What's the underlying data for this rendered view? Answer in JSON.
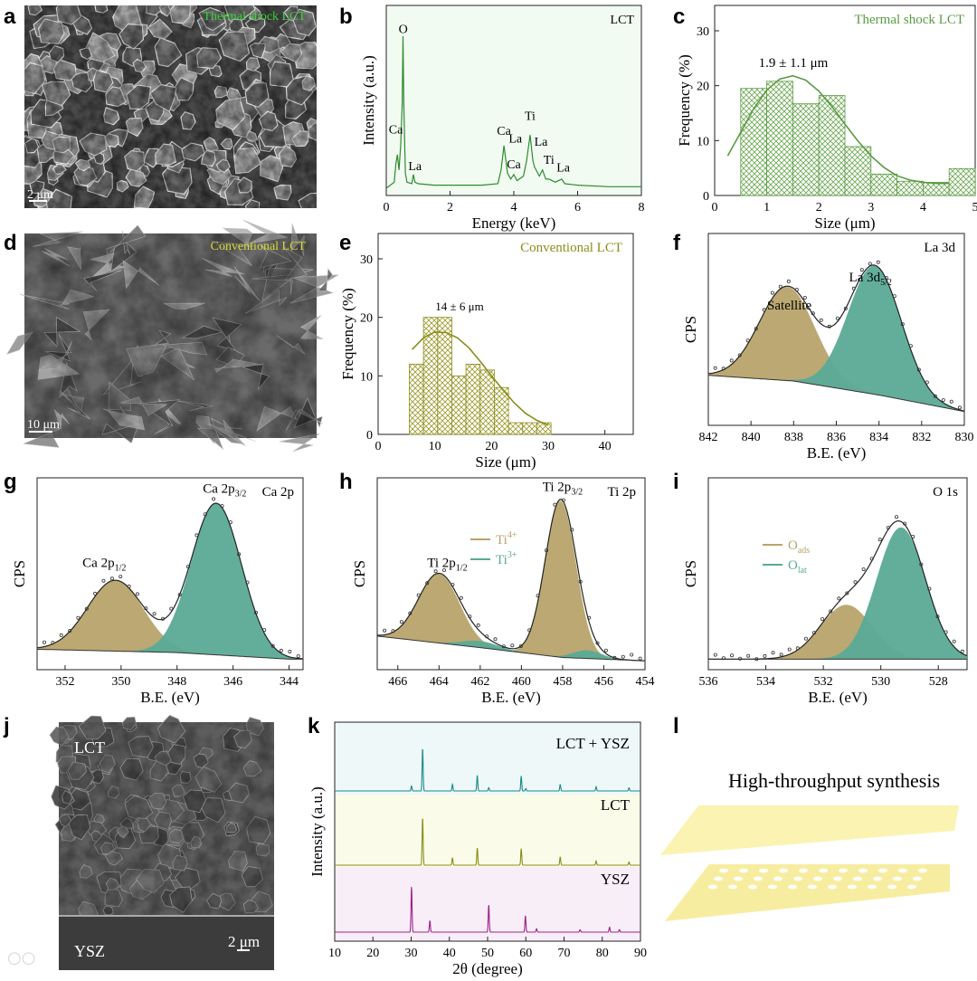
{
  "panels": {
    "a": {
      "letter": "a",
      "caption": "Thermal shock LCT",
      "scalebar": "2 μm"
    },
    "d": {
      "letter": "d",
      "caption": "Conventional LCT",
      "scalebar": "10 μm"
    },
    "j": {
      "letter": "j",
      "top_label": "LCT",
      "bottom_label": "YSZ",
      "scalebar": "2 μm"
    },
    "l": {
      "letter": "l",
      "title": "High-throughput synthesis"
    }
  },
  "colors": {
    "green": "#2e8b2e",
    "olive": "#8c8c1a",
    "tan": "#b8a36a",
    "teal": "#5aaa96",
    "purple": "#a0208a",
    "cyan": "#1a8a8a",
    "plate": "#fbf3b2"
  },
  "chart_data": [
    {
      "id": "b",
      "letter": "b",
      "type": "line",
      "title": "",
      "legend": "LCT",
      "xlabel": "Energy (keV)",
      "ylabel": "Intensity (a.u.)",
      "xlim": [
        0,
        8
      ],
      "ylim": [
        0,
        100
      ],
      "xticks": [
        0,
        2,
        4,
        6,
        8
      ],
      "x": [
        0,
        0.25,
        0.3,
        0.35,
        0.4,
        0.45,
        0.5,
        0.525,
        0.55,
        0.6,
        0.65,
        0.8,
        0.85,
        0.9,
        1,
        1.5,
        2,
        2.5,
        3,
        3.5,
        3.6,
        3.69,
        3.8,
        3.9,
        4.0,
        4.1,
        4.3,
        4.4,
        4.51,
        4.6,
        4.65,
        4.8,
        4.9,
        5.0,
        5.1,
        5.3,
        5.5,
        5.6,
        6,
        7,
        8
      ],
      "y": [
        0,
        4,
        16,
        22,
        12,
        28,
        55,
        100,
        55,
        10,
        4,
        3,
        9,
        4,
        3,
        2,
        2,
        2,
        2,
        3,
        12,
        28,
        10,
        6,
        9,
        5,
        8,
        18,
        35,
        18,
        14,
        8,
        12,
        6,
        6,
        4,
        6,
        3,
        2,
        1,
        1
      ],
      "annotations": [
        {
          "text": "O",
          "x": 0.53,
          "y": 102
        },
        {
          "text": "Ca",
          "x": 0.3,
          "y": 36
        },
        {
          "text": "La",
          "x": 0.9,
          "y": 12
        },
        {
          "text": "Ca",
          "x": 3.69,
          "y": 35
        },
        {
          "text": "La",
          "x": 4.05,
          "y": 30
        },
        {
          "text": "Ca",
          "x": 4.0,
          "y": 13
        },
        {
          "text": "Ti",
          "x": 4.51,
          "y": 45
        },
        {
          "text": "La",
          "x": 4.85,
          "y": 28
        },
        {
          "text": "Ti",
          "x": 5.1,
          "y": 16
        },
        {
          "text": "La",
          "x": 5.55,
          "y": 11
        }
      ]
    },
    {
      "id": "c",
      "letter": "c",
      "type": "bar",
      "legend": "Thermal shock  LCT",
      "xlabel": "Size (μm)",
      "ylabel": "Frequency (%)",
      "xlim": [
        0,
        5
      ],
      "ylim": [
        0,
        30
      ],
      "xticks": [
        0,
        1,
        2,
        3,
        4,
        5
      ],
      "yticks": [
        0,
        10,
        20,
        30
      ],
      "bin_edges": [
        0.5,
        1.0,
        1.5,
        2.0,
        2.5,
        3.0,
        3.5,
        4.0,
        4.5,
        5.0
      ],
      "values": [
        19.5,
        20.8,
        16.7,
        18.2,
        8.9,
        3.9,
        2.6,
        2.4,
        4.9
      ],
      "fit_x": [
        0.25,
        0.5,
        0.75,
        1.0,
        1.25,
        1.5,
        1.75,
        2.0,
        2.25,
        2.5,
        2.75,
        3.0,
        3.25,
        3.5,
        3.75,
        4.0,
        4.25,
        4.5
      ],
      "fit_y": [
        7.2,
        11.5,
        15.8,
        19.2,
        21.2,
        21.8,
        21.0,
        19.0,
        16.2,
        13.0,
        9.9,
        7.2,
        5.1,
        3.6,
        2.8,
        2.4,
        2.2,
        2.2
      ],
      "annotation": "1.9 ± 1.1 μm"
    },
    {
      "id": "e",
      "letter": "e",
      "type": "bar",
      "legend": "Conventional  LCT",
      "xlabel": "Size (μm)",
      "ylabel": "Frequency (%)",
      "xlim": [
        0,
        45
      ],
      "ylim": [
        0,
        30
      ],
      "xticks": [
        0,
        10,
        20,
        30,
        40
      ],
      "yticks": [
        0,
        10,
        20,
        30
      ],
      "bin_edges": [
        5.5,
        8.0,
        10.5,
        13.0,
        15.5,
        18.0,
        20.5,
        23.0,
        25.5,
        28.0,
        30.5
      ],
      "values": [
        12,
        20,
        20,
        10,
        12,
        11,
        8,
        2,
        2,
        2
      ],
      "fit_x": [
        6,
        8,
        10,
        12,
        14,
        16,
        18,
        20,
        22,
        24,
        26,
        28,
        30
      ],
      "fit_y": [
        14.5,
        16.5,
        17.5,
        17.4,
        16.5,
        14.8,
        12.5,
        10.0,
        7.6,
        5.4,
        3.6,
        2.4,
        1.6
      ],
      "annotation": "14 ± 6 μm"
    },
    {
      "id": "f",
      "letter": "f",
      "type": "line",
      "title": "La 3d",
      "xlabel": "B.E. (eV)",
      "ylabel": "CPS",
      "xlim": [
        842,
        830
      ],
      "ylim": [
        0,
        100
      ],
      "xticks": [
        842,
        840,
        838,
        836,
        834,
        832,
        830
      ],
      "background": [
        [
          842,
          26
        ],
        [
          838,
          22.5
        ],
        [
          834,
          14
        ],
        [
          830,
          4
        ]
      ],
      "components": [
        {
          "name": "Satellite",
          "center": 838.3,
          "sigma": 1.3,
          "amp": 57
        },
        {
          "name": "La 3d5/2",
          "center": 834.2,
          "sigma": 1.25,
          "amp": 78
        }
      ],
      "labels": [
        "Satellite",
        "La 3d",
        "5/2"
      ]
    },
    {
      "id": "g",
      "letter": "g",
      "type": "line",
      "title": "Ca 2p",
      "xlabel": "B.E. (eV)",
      "ylabel": "CPS",
      "xlim": [
        353,
        343.5
      ],
      "ylim": [
        0,
        100
      ],
      "xticks": [
        352,
        350,
        348,
        346,
        344
      ],
      "background": [
        [
          353,
          8
        ],
        [
          348,
          6
        ],
        [
          344,
          2
        ]
      ],
      "components": [
        {
          "name": "Ca 2p1/2",
          "center": 350.2,
          "sigma": 1.0,
          "amp": 43
        },
        {
          "name": "Ca 2p3/2",
          "center": 346.6,
          "sigma": 0.9,
          "amp": 92
        }
      ],
      "labels": [
        "Ca 2p",
        "1/2",
        "Ca 2p",
        "3/2"
      ]
    },
    {
      "id": "h",
      "letter": "h",
      "type": "line",
      "title": "Ti 2p",
      "xlabel": "B.E. (eV)",
      "ylabel": "CPS",
      "xlim": [
        467,
        454
      ],
      "ylim": [
        0,
        100
      ],
      "xticks": [
        466,
        464,
        462,
        460,
        458,
        456,
        454
      ],
      "background": [
        [
          467,
          16
        ],
        [
          462,
          9
        ],
        [
          458,
          3
        ],
        [
          454,
          1
        ]
      ],
      "components": [
        {
          "name": "Ti4+",
          "center": 464.0,
          "sigma": 1.0,
          "amp": 42
        },
        {
          "name": "Ti4+",
          "center": 458.1,
          "sigma": 0.75,
          "amp": 95
        },
        {
          "name": "Ti3+",
          "center": 462.0,
          "sigma": 0.9,
          "amp": 4
        },
        {
          "name": "Ti3+",
          "center": 456.8,
          "sigma": 0.7,
          "amp": 5
        }
      ],
      "legend": [
        {
          "label": "Ti",
          "sup": "4+",
          "color": "#b8a36a"
        },
        {
          "label": "Ti",
          "sup": "3+",
          "color": "#5aaa96"
        }
      ],
      "labels": [
        "Ti 2p",
        "1/2",
        "Ti 2p",
        "3/2"
      ]
    },
    {
      "id": "i",
      "letter": "i",
      "type": "line",
      "title": "O 1s",
      "xlabel": "B.E. (eV)",
      "ylabel": "CPS",
      "xlim": [
        536,
        527
      ],
      "ylim": [
        0,
        100
      ],
      "xticks": [
        536,
        534,
        532,
        530,
        528
      ],
      "background": [
        [
          536,
          2
        ],
        [
          531,
          2
        ],
        [
          527,
          2
        ]
      ],
      "components": [
        {
          "name": "Oads",
          "center": 531.2,
          "sigma": 0.9,
          "amp": 33
        },
        {
          "name": "Olat",
          "center": 529.3,
          "sigma": 0.85,
          "amp": 80
        }
      ],
      "legend": [
        {
          "label": "O",
          "sub": "ads",
          "color": "#b8a36a"
        },
        {
          "label": "O",
          "sub": "lat",
          "color": "#5aaa96"
        }
      ]
    },
    {
      "id": "k",
      "letter": "k",
      "type": "line",
      "xlabel": "2θ (degree)",
      "ylabel": "Intensity (a.u.)",
      "xlim": [
        10,
        90
      ],
      "xticks": [
        10,
        20,
        30,
        40,
        50,
        60,
        70,
        80,
        90
      ],
      "series": [
        {
          "name": "LCT + YSZ",
          "color": "#1a8a8a",
          "peaks": [
            [
              30.1,
              6
            ],
            [
              33.0,
              52
            ],
            [
              40.8,
              8
            ],
            [
              47.3,
              19
            ],
            [
              50.3,
              4
            ],
            [
              58.8,
              18
            ],
            [
              60.0,
              3
            ],
            [
              69.0,
              8
            ],
            [
              78.4,
              5
            ],
            [
              87.0,
              4
            ]
          ]
        },
        {
          "name": "LCT",
          "color": "#8c8c1a",
          "peaks": [
            [
              33.0,
              58
            ],
            [
              40.8,
              9
            ],
            [
              47.3,
              21
            ],
            [
              58.8,
              20
            ],
            [
              69.0,
              10
            ],
            [
              78.4,
              5
            ],
            [
              87.0,
              4
            ]
          ]
        },
        {
          "name": "YSZ",
          "color": "#a0208a",
          "peaks": [
            [
              30.1,
              55
            ],
            [
              34.9,
              14
            ],
            [
              50.3,
              33
            ],
            [
              59.9,
              20
            ],
            [
              62.8,
              4
            ],
            [
              74.2,
              3
            ],
            [
              81.9,
              6
            ],
            [
              84.5,
              3
            ]
          ]
        }
      ]
    }
  ]
}
